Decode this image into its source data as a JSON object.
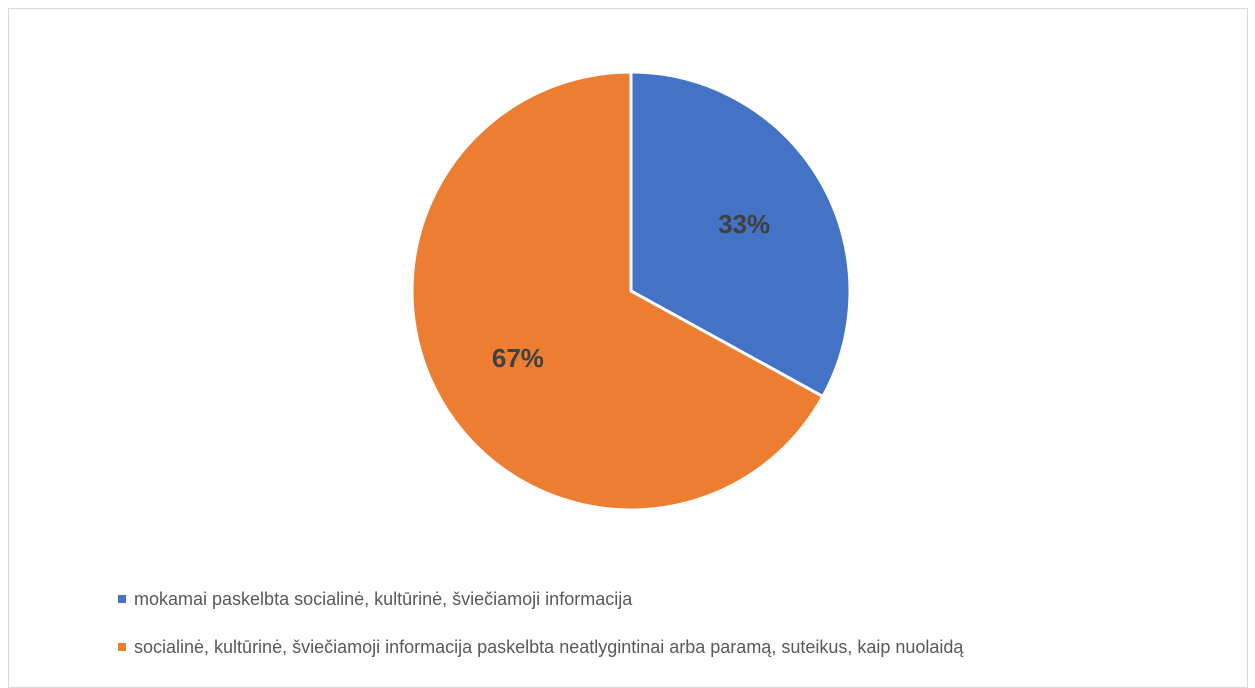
{
  "chart_data": {
    "type": "pie",
    "title": "",
    "series": [
      {
        "values": [
          33,
          67
        ],
        "labels": [
          "33%",
          "67%"
        ]
      }
    ],
    "categories": [
      "mokamai paskelbta socialinė, kultūrinė, šviečiamoji informacija",
      "socialinė, kultūrinė, šviečiamoji informacija paskelbta neatlygintinai arba paramą, suteikus, kaip nuolaidą"
    ],
    "colors": [
      "#4472C4",
      "#ED7D31"
    ],
    "legend_position": "bottom-left"
  }
}
